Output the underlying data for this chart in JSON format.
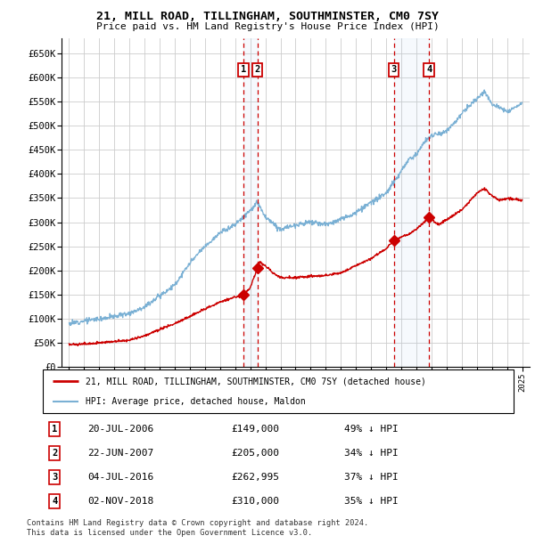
{
  "title": "21, MILL ROAD, TILLINGHAM, SOUTHMINSTER, CM0 7SY",
  "subtitle": "Price paid vs. HM Land Registry's House Price Index (HPI)",
  "legend_line1": "21, MILL ROAD, TILLINGHAM, SOUTHMINSTER, CM0 7SY (detached house)",
  "legend_line2": "HPI: Average price, detached house, Maldon",
  "footer1": "Contains HM Land Registry data © Crown copyright and database right 2024.",
  "footer2": "This data is licensed under the Open Government Licence v3.0.",
  "transactions": [
    {
      "num": 1,
      "date": "20-JUL-2006",
      "price": 149000,
      "pct": "49% ↓ HPI",
      "x": 2006.55
    },
    {
      "num": 2,
      "date": "22-JUN-2007",
      "price": 205000,
      "pct": "34% ↓ HPI",
      "x": 2007.47
    },
    {
      "num": 3,
      "date": "04-JUL-2016",
      "price": 262995,
      "pct": "37% ↓ HPI",
      "x": 2016.51
    },
    {
      "num": 4,
      "date": "02-NOV-2018",
      "price": 310000,
      "pct": "35% ↓ HPI",
      "x": 2018.84
    }
  ],
  "hpi_color": "#7ab0d4",
  "price_color": "#cc0000",
  "vline_color": "#cc0000",
  "background_color": "#ffffff",
  "grid_color": "#cccccc",
  "ylim": [
    0,
    680000
  ],
  "xlim": [
    1994.5,
    2025.5
  ],
  "ytick_step": 50000,
  "hpi_key_years": [
    1995,
    1996,
    1997,
    1998,
    1999,
    2000,
    2001,
    2002,
    2003,
    2004,
    2005,
    2006,
    2007,
    2007.5,
    2008,
    2009,
    2010,
    2011,
    2012,
    2013,
    2014,
    2015,
    2016,
    2017,
    2017.5,
    2018,
    2018.5,
    2019,
    2020,
    2021,
    2022,
    2022.5,
    2023,
    2024,
    2025
  ],
  "hpi_key_vals": [
    90000,
    96000,
    100000,
    105000,
    112000,
    125000,
    148000,
    170000,
    215000,
    250000,
    278000,
    295000,
    325000,
    340000,
    310000,
    285000,
    295000,
    300000,
    295000,
    305000,
    320000,
    340000,
    360000,
    405000,
    430000,
    440000,
    465000,
    480000,
    488000,
    525000,
    555000,
    570000,
    545000,
    530000,
    545000
  ],
  "pp_key_years": [
    1995,
    1996,
    1997,
    1998,
    1999,
    2000,
    2001,
    2002,
    2003,
    2004,
    2005,
    2006,
    2006.4,
    2006.55,
    2006.7,
    2007,
    2007.47,
    2007.6,
    2008,
    2008.5,
    2009,
    2010,
    2011,
    2012,
    2013,
    2014,
    2015,
    2016,
    2016.51,
    2017,
    2017.5,
    2018,
    2018.84,
    2019,
    2019.5,
    2020,
    2021,
    2022,
    2022.5,
    2023,
    2023.5,
    2024,
    2025
  ],
  "pp_key_vals": [
    47000,
    48000,
    50000,
    53000,
    56000,
    65000,
    78000,
    90000,
    105000,
    120000,
    135000,
    145000,
    147000,
    149000,
    155000,
    165000,
    205000,
    218000,
    210000,
    195000,
    185000,
    185000,
    188000,
    190000,
    195000,
    210000,
    225000,
    245000,
    262995,
    270000,
    275000,
    285000,
    310000,
    305000,
    295000,
    305000,
    325000,
    360000,
    370000,
    355000,
    345000,
    350000,
    345000
  ]
}
